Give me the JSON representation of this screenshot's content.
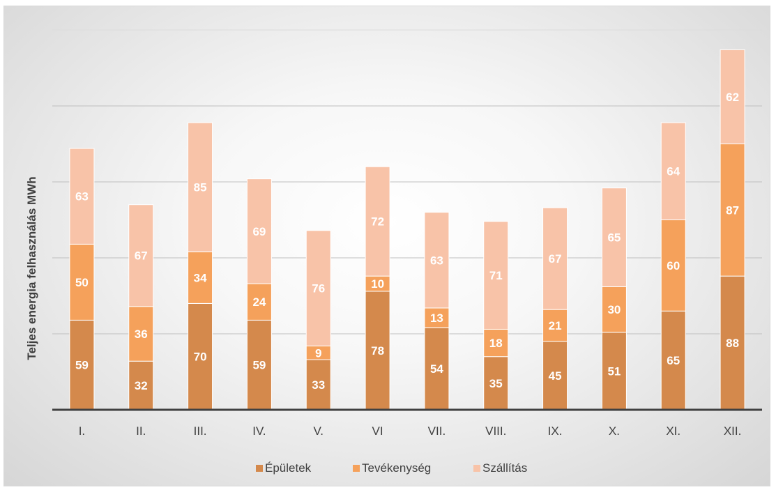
{
  "chart_data": {
    "type": "bar",
    "stacked": true,
    "categories": [
      "I.",
      "II.",
      "III.",
      "IV.",
      "V.",
      "VI",
      "VII.",
      "VIII.",
      "IX.",
      "X.",
      "XI.",
      "XII."
    ],
    "series": [
      {
        "name": "Épületek",
        "color": "#d4894c",
        "values": [
          59,
          32,
          70,
          59,
          33,
          78,
          54,
          35,
          45,
          51,
          65,
          88
        ]
      },
      {
        "name": "Tevékenység",
        "color": "#f5a15b",
        "values": [
          50,
          36,
          34,
          24,
          9,
          10,
          13,
          18,
          21,
          30,
          60,
          87
        ]
      },
      {
        "name": "Szállítás",
        "color": "#f8c3a8",
        "values": [
          63,
          67,
          85,
          69,
          76,
          72,
          63,
          71,
          67,
          65,
          64,
          62
        ]
      }
    ],
    "title": "",
    "xlabel": "",
    "ylabel": "Teljes energia felhasználás MWh",
    "ylim": [
      0,
      250
    ],
    "y_gridlines": [
      50,
      100,
      150,
      200,
      250
    ],
    "y_tick_labels_visible": false,
    "grid": true,
    "legend_position": "bottom"
  }
}
